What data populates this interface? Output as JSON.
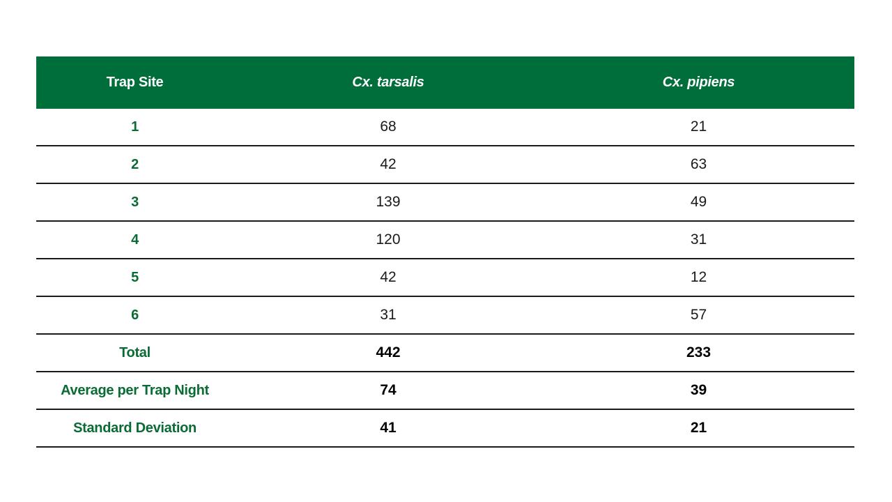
{
  "table": {
    "headers": {
      "site": "Trap Site",
      "tarsalis": "Cx. tarsalis",
      "pipiens": "Cx. pipiens"
    },
    "rows": [
      {
        "site": "1",
        "tarsalis": "68",
        "pipiens": "21"
      },
      {
        "site": "2",
        "tarsalis": "42",
        "pipiens": "63"
      },
      {
        "site": "3",
        "tarsalis": "139",
        "pipiens": "49"
      },
      {
        "site": "4",
        "tarsalis": "120",
        "pipiens": "31"
      },
      {
        "site": "5",
        "tarsalis": "42",
        "pipiens": "12"
      },
      {
        "site": "6",
        "tarsalis": "31",
        "pipiens": "57"
      }
    ],
    "summary": [
      {
        "label": "Total",
        "tarsalis": "442",
        "pipiens": "233"
      },
      {
        "label": "Average per Trap Night",
        "tarsalis": "74",
        "pipiens": "39"
      },
      {
        "label": "Standard Deviation",
        "tarsalis": "41",
        "pipiens": "21"
      }
    ]
  },
  "colors": {
    "header_background": "#006e3a",
    "header_text": "#ffffff",
    "label_text": "#0a6b35",
    "rule": "#1a1a1a"
  }
}
